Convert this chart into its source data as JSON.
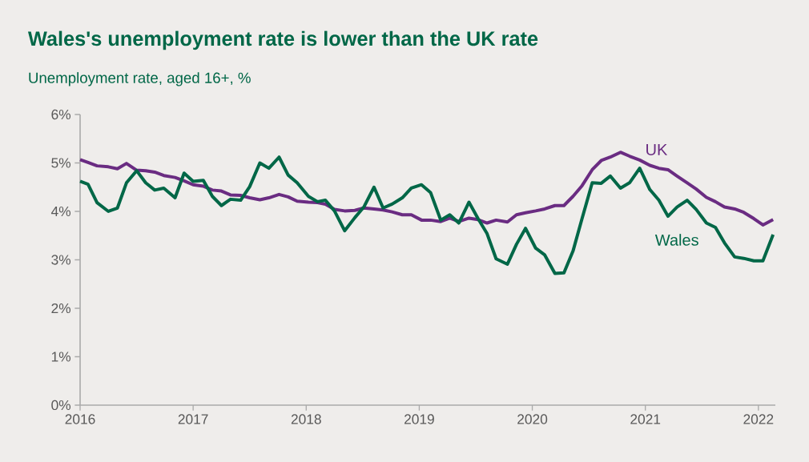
{
  "chart_data": {
    "type": "line",
    "title": "Wales's unemployment rate is lower than the UK rate",
    "subtitle": "Unemployment rate, aged 16+, %",
    "x": [
      2016.0,
      2016.07,
      2016.15,
      2016.25,
      2016.33,
      2016.41,
      2016.5,
      2016.58,
      2016.66,
      2016.74,
      2016.84,
      2016.92,
      2017.0,
      2017.09,
      2017.17,
      2017.25,
      2017.33,
      2017.42,
      2017.5,
      2017.59,
      2017.67,
      2017.76,
      2017.84,
      2017.92,
      2018.02,
      2018.1,
      2018.17,
      2018.25,
      2018.34,
      2018.43,
      2018.51,
      2018.6,
      2018.68,
      2018.76,
      2018.85,
      2018.93,
      2019.02,
      2019.1,
      2019.19,
      2019.27,
      2019.35,
      2019.44,
      2019.52,
      2019.6,
      2019.68,
      2019.78,
      2019.86,
      2019.94,
      2020.03,
      2020.11,
      2020.2,
      2020.28,
      2020.36,
      2020.44,
      2020.53,
      2020.61,
      2020.69,
      2020.78,
      2020.86,
      2020.95,
      2021.04,
      2021.12,
      2021.2,
      2021.28,
      2021.37,
      2021.45,
      2021.54,
      2021.62,
      2021.7,
      2021.79,
      2021.87,
      2021.96,
      2022.04,
      2022.13
    ],
    "series": [
      {
        "name": "UK",
        "color": "#6a2c82",
        "values": [
          5.07,
          5.01,
          4.94,
          4.92,
          4.88,
          4.99,
          4.85,
          4.84,
          4.81,
          4.74,
          4.7,
          4.63,
          4.55,
          4.52,
          4.44,
          4.42,
          4.34,
          4.33,
          4.28,
          4.24,
          4.28,
          4.35,
          4.3,
          4.21,
          4.19,
          4.18,
          4.15,
          4.04,
          4.01,
          4.02,
          4.07,
          4.05,
          4.03,
          3.99,
          3.93,
          3.93,
          3.82,
          3.82,
          3.79,
          3.86,
          3.79,
          3.86,
          3.83,
          3.76,
          3.82,
          3.78,
          3.93,
          3.97,
          4.01,
          4.05,
          4.12,
          4.12,
          4.31,
          4.53,
          4.86,
          5.05,
          5.12,
          5.22,
          5.14,
          5.06,
          4.95,
          4.89,
          4.86,
          4.73,
          4.59,
          4.46,
          4.29,
          4.2,
          4.09,
          4.05,
          3.98,
          3.85,
          3.72,
          3.83
        ]
      },
      {
        "name": "Wales",
        "color": "#006747",
        "values": [
          4.62,
          4.56,
          4.18,
          4.0,
          4.07,
          4.59,
          4.84,
          4.59,
          4.44,
          4.48,
          4.28,
          4.79,
          4.62,
          4.64,
          4.31,
          4.12,
          4.25,
          4.23,
          4.51,
          5.0,
          4.89,
          5.12,
          4.75,
          4.59,
          4.31,
          4.2,
          4.23,
          4.01,
          3.6,
          3.87,
          4.09,
          4.5,
          4.07,
          4.15,
          4.28,
          4.48,
          4.55,
          4.39,
          3.82,
          3.93,
          3.76,
          4.19,
          3.85,
          3.54,
          3.02,
          2.91,
          3.32,
          3.65,
          3.24,
          3.1,
          2.72,
          2.73,
          3.18,
          3.85,
          4.59,
          4.58,
          4.73,
          4.48,
          4.59,
          4.89,
          4.45,
          4.23,
          3.9,
          4.09,
          4.23,
          4.04,
          3.76,
          3.67,
          3.35,
          3.06,
          3.03,
          2.98,
          2.98,
          3.52
        ]
      }
    ],
    "xlim": [
      2016,
      2022.15
    ],
    "xticks": [
      2016,
      2017,
      2018,
      2019,
      2020,
      2021,
      2022
    ],
    "ylim": [
      0,
      6
    ],
    "yticks": [
      {
        "value": 0,
        "label": "0%"
      },
      {
        "value": 1,
        "label": "1%"
      },
      {
        "value": 2,
        "label": "2%"
      },
      {
        "value": 3,
        "label": "3%"
      },
      {
        "value": 4,
        "label": "4%"
      },
      {
        "value": 5,
        "label": "5%"
      },
      {
        "value": 6,
        "label": "6%"
      }
    ],
    "grid": false,
    "legend": false,
    "marker": "none",
    "line_style": "solid"
  }
}
